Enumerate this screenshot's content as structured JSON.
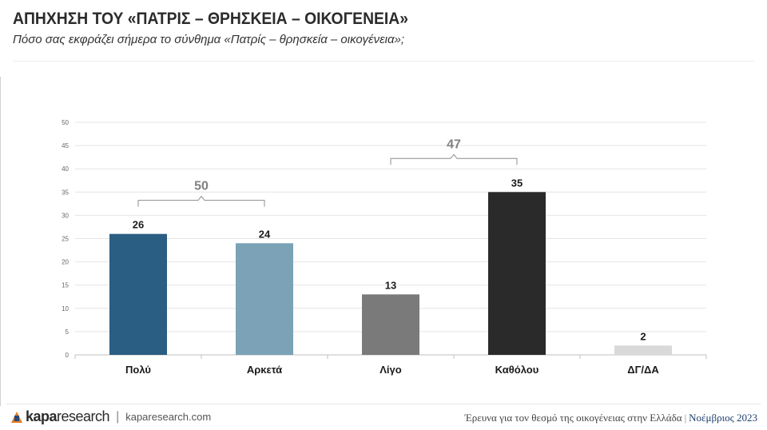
{
  "header": {
    "title": "ΑΠΗΧΗΣΗ ΤΟΥ «ΠΑΤΡΙΣ – ΘΡΗΣΚΕΙΑ – ΟΙΚΟΓΕΝΕΙΑ»",
    "subtitle": "Πόσο σας εκφράζει σήμερα το σύνθημα «Πατρίς – θρησκεία – οικογένεια»;"
  },
  "chart_data": {
    "type": "bar",
    "categories": [
      "Πολύ",
      "Αρκετά",
      "Λίγο",
      "Καθόλου",
      "ΔΓ/ΔΑ"
    ],
    "values": [
      26,
      24,
      13,
      35,
      2
    ],
    "colors": [
      "#2a5e82",
      "#7ba2b7",
      "#7a7a7a",
      "#2a2a2a",
      "#d9d9d9"
    ],
    "ylim": [
      0,
      50
    ],
    "yticks": [
      0,
      5,
      10,
      15,
      20,
      25,
      30,
      35,
      40,
      45,
      50
    ],
    "grid": true,
    "group_totals": [
      {
        "label": "50",
        "categories": [
          "Πολύ",
          "Αρκετά"
        ]
      },
      {
        "label": "47",
        "categories": [
          "Λίγο",
          "Καθόλου"
        ]
      }
    ]
  },
  "footer": {
    "brand_bold": "kapa",
    "brand_rest": "research",
    "separator": "|",
    "url": "kaparesearch.com",
    "note": "Έρευνα για τον θεσμό της οικογένειας στην Ελλάδα",
    "note_separator": "|",
    "date": "Νοέμβριος 2023"
  }
}
